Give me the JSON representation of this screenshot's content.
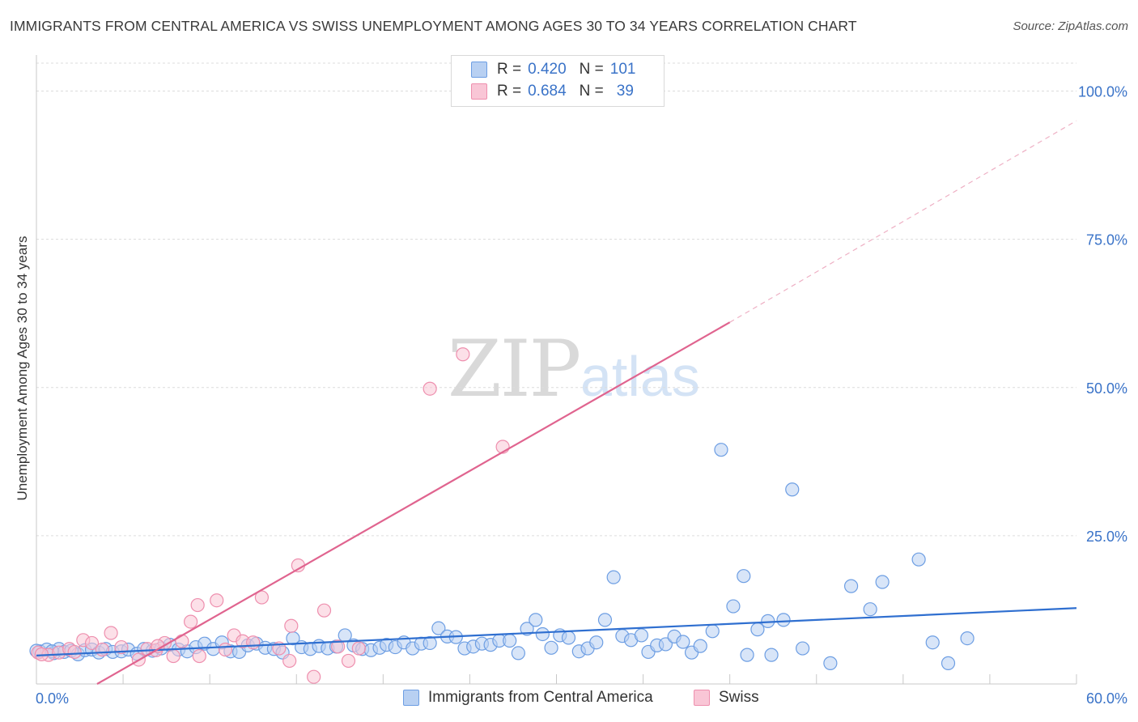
{
  "header": {
    "title": "IMMIGRANTS FROM CENTRAL AMERICA VS SWISS UNEMPLOYMENT AMONG AGES 30 TO 34 YEARS CORRELATION CHART",
    "source": "Source: ZipAtlas.com"
  },
  "watermark": {
    "zip": "ZIP",
    "atlas": "atlas"
  },
  "legend": {
    "rows": [
      {
        "r_label": "R =",
        "r_value": "0.420",
        "n_label": "N =",
        "n_value": "101",
        "color": "#6d9ee3"
      },
      {
        "r_label": "R =",
        "r_value": "0.684",
        "n_label": "N =",
        "n_value": "39",
        "color": "#ee8fae"
      }
    ]
  },
  "chart_data": {
    "type": "scatter",
    "title": "IMMIGRANTS FROM CENTRAL AMERICA VS SWISS UNEMPLOYMENT AMONG AGES 30 TO 34 YEARS CORRELATION CHART",
    "xlabel": "",
    "ylabel": "Unemployment Among Ages 30 to 34 years",
    "xlim": [
      0,
      60
    ],
    "ylim": [
      0,
      100
    ],
    "x_tick_labels": [
      "0.0%",
      "60.0%"
    ],
    "y_tick_labels": [
      "100.0%",
      "75.0%",
      "50.0%",
      "25.0%"
    ],
    "y_ticks": [
      100,
      75,
      50,
      25
    ],
    "grid": true,
    "legend_position": "bottom",
    "series": [
      {
        "name": "Immigrants from Central America",
        "color": "#6d9ee3",
        "fill": "#b8d0f2",
        "trend": {
          "x0": 0,
          "y0": 4.8,
          "x1": 60,
          "y1": 12.8
        },
        "points": [
          [
            0.2,
            5.5
          ],
          [
            0.6,
            5.8
          ],
          [
            1.0,
            5.2
          ],
          [
            1.3,
            5.9
          ],
          [
            1.6,
            5.4
          ],
          [
            2.0,
            5.6
          ],
          [
            2.4,
            5.0
          ],
          [
            2.8,
            5.7
          ],
          [
            3.2,
            5.8
          ],
          [
            3.6,
            5.3
          ],
          [
            4.0,
            5.9
          ],
          [
            4.4,
            5.4
          ],
          [
            4.9,
            5.5
          ],
          [
            5.3,
            5.8
          ],
          [
            5.8,
            5.1
          ],
          [
            6.2,
            5.9
          ],
          [
            6.7,
            5.6
          ],
          [
            7.2,
            6.0
          ],
          [
            7.7,
            6.6
          ],
          [
            8.2,
            5.8
          ],
          [
            8.7,
            5.5
          ],
          [
            9.2,
            6.2
          ],
          [
            9.7,
            6.8
          ],
          [
            10.2,
            5.9
          ],
          [
            10.7,
            7.0
          ],
          [
            11.2,
            5.5
          ],
          [
            11.7,
            5.4
          ],
          [
            12.2,
            6.5
          ],
          [
            12.7,
            6.8
          ],
          [
            13.2,
            6.1
          ],
          [
            13.7,
            5.9
          ],
          [
            14.2,
            5.3
          ],
          [
            14.8,
            7.7
          ],
          [
            15.3,
            6.2
          ],
          [
            15.8,
            5.9
          ],
          [
            16.3,
            6.4
          ],
          [
            16.8,
            6.0
          ],
          [
            17.3,
            6.3
          ],
          [
            17.8,
            8.2
          ],
          [
            18.3,
            6.5
          ],
          [
            18.8,
            5.9
          ],
          [
            19.3,
            5.7
          ],
          [
            19.8,
            6.1
          ],
          [
            20.2,
            6.6
          ],
          [
            20.7,
            6.2
          ],
          [
            21.2,
            7.0
          ],
          [
            21.7,
            6.0
          ],
          [
            22.2,
            6.8
          ],
          [
            22.7,
            6.9
          ],
          [
            23.2,
            9.4
          ],
          [
            23.7,
            8.0
          ],
          [
            24.2,
            7.9
          ],
          [
            24.7,
            6.0
          ],
          [
            25.2,
            6.3
          ],
          [
            25.7,
            6.8
          ],
          [
            26.2,
            6.6
          ],
          [
            26.7,
            7.3
          ],
          [
            27.3,
            7.3
          ],
          [
            27.8,
            5.2
          ],
          [
            28.3,
            9.3
          ],
          [
            28.8,
            10.8
          ],
          [
            29.2,
            8.4
          ],
          [
            29.7,
            6.1
          ],
          [
            30.2,
            8.2
          ],
          [
            30.7,
            7.8
          ],
          [
            31.3,
            5.5
          ],
          [
            31.8,
            6.0
          ],
          [
            32.3,
            7.0
          ],
          [
            32.8,
            10.8
          ],
          [
            33.3,
            18.0
          ],
          [
            33.8,
            8.1
          ],
          [
            34.3,
            7.4
          ],
          [
            34.9,
            8.2
          ],
          [
            35.3,
            5.4
          ],
          [
            35.8,
            6.5
          ],
          [
            36.3,
            6.7
          ],
          [
            36.8,
            8.0
          ],
          [
            37.3,
            7.1
          ],
          [
            37.8,
            5.3
          ],
          [
            38.3,
            6.4
          ],
          [
            39.0,
            8.9
          ],
          [
            39.5,
            39.5
          ],
          [
            40.2,
            13.1
          ],
          [
            40.8,
            18.2
          ],
          [
            41.0,
            4.9
          ],
          [
            41.6,
            9.2
          ],
          [
            42.2,
            10.6
          ],
          [
            42.4,
            4.9
          ],
          [
            43.1,
            10.8
          ],
          [
            43.6,
            32.8
          ],
          [
            44.2,
            6.0
          ],
          [
            45.8,
            3.5
          ],
          [
            47.0,
            16.5
          ],
          [
            48.1,
            12.6
          ],
          [
            48.8,
            17.2
          ],
          [
            50.9,
            21.0
          ],
          [
            51.7,
            7.0
          ],
          [
            52.6,
            3.5
          ],
          [
            53.7,
            7.7
          ],
          [
            0.0,
            5.6
          ],
          [
            0.9,
            5.5
          ]
        ]
      },
      {
        "name": "Swiss",
        "color": "#ee8fae",
        "fill": "#f9c6d6",
        "trend": {
          "x0": 3.5,
          "y0": 0,
          "x1": 40.0,
          "y1": 61.0,
          "dash_to_x": 60,
          "dash_to_y": 95
        },
        "points": [
          [
            0.1,
            5.3
          ],
          [
            0.7,
            4.9
          ],
          [
            1.3,
            5.3
          ],
          [
            1.9,
            5.9
          ],
          [
            2.7,
            7.4
          ],
          [
            3.2,
            6.9
          ],
          [
            3.8,
            5.8
          ],
          [
            4.3,
            8.6
          ],
          [
            4.9,
            6.2
          ],
          [
            5.9,
            4.1
          ],
          [
            6.4,
            5.9
          ],
          [
            6.9,
            5.7
          ],
          [
            7.4,
            6.9
          ],
          [
            7.9,
            4.7
          ],
          [
            8.4,
            7.2
          ],
          [
            8.9,
            10.5
          ],
          [
            9.4,
            4.7
          ],
          [
            9.3,
            13.3
          ],
          [
            10.4,
            14.1
          ],
          [
            10.9,
            5.8
          ],
          [
            11.4,
            8.2
          ],
          [
            11.9,
            7.2
          ],
          [
            12.5,
            7.0
          ],
          [
            13.0,
            14.6
          ],
          [
            14.0,
            6.0
          ],
          [
            14.6,
            3.9
          ],
          [
            14.7,
            9.8
          ],
          [
            15.1,
            20.0
          ],
          [
            16.0,
            1.2
          ],
          [
            16.6,
            12.4
          ],
          [
            17.4,
            6.3
          ],
          [
            18.0,
            3.9
          ],
          [
            18.6,
            6.0
          ],
          [
            22.7,
            49.8
          ],
          [
            24.6,
            55.6
          ],
          [
            26.9,
            40.0
          ],
          [
            0.3,
            5.0
          ],
          [
            2.2,
            5.4
          ],
          [
            7.0,
            6.4
          ]
        ]
      }
    ]
  }
}
